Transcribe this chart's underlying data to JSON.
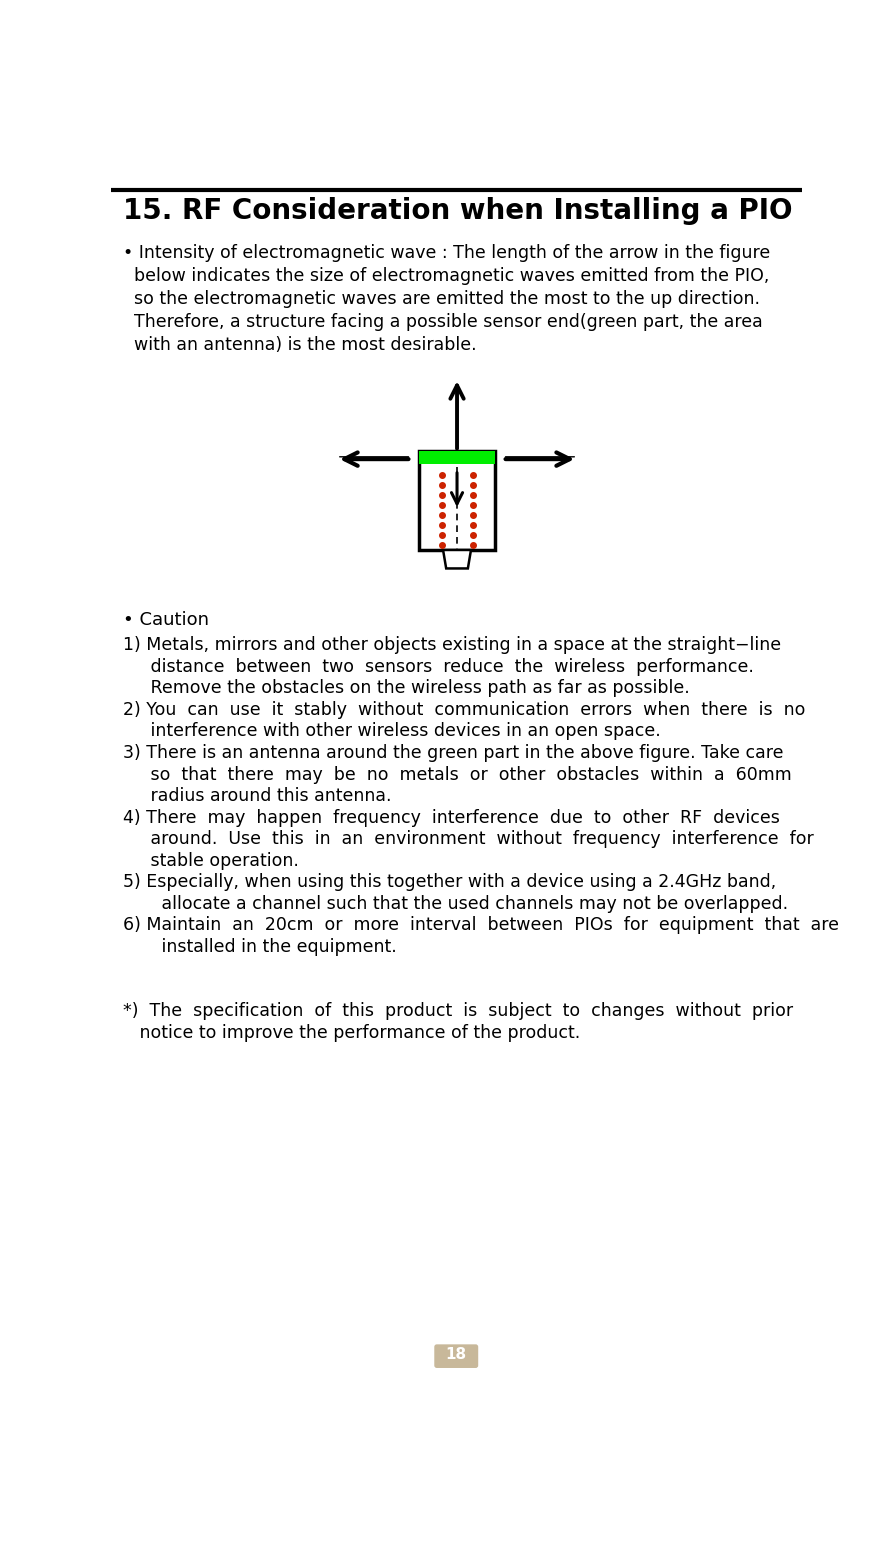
{
  "title": "15. RF Consideration when Installing a PIO",
  "bg_color": "#ffffff",
  "text_color": "#000000",
  "page_number": "18",
  "top_border_color": "#000000",
  "green_color": "#00ee00",
  "red_dot_color": "#cc2200",
  "arrow_color": "#000000",
  "page_box_color": "#c8b89a",
  "bullet1_lines": [
    "• Intensity of electromagnetic wave : The length of the arrow in the figure",
    "  below indicates the size of electromagnetic waves emitted from the PIO,",
    "  so the electromagnetic waves are emitted the most to the up direction.",
    "  Therefore, a structure facing a possible sensor end(green part, the area",
    "  with an antenna) is the most desirable."
  ],
  "caution_header": "• Caution",
  "caution_lines": [
    "1) Metals, mirrors and other objects existing in a space at the straight−line",
    "     distance  between  two  sensors  reduce  the  wireless  performance.",
    "     Remove the obstacles on the wireless path as far as possible.",
    "2) You  can  use  it  stably  without  communication  errors  when  there  is  no",
    "     interference with other wireless devices in an open space.",
    "3) There is an antenna around the green part in the above figure. Take care",
    "     so  that  there  may  be  no  metals  or  other  obstacles  within  a  60mm",
    "     radius around this antenna.",
    "4) There  may  happen  frequency  interference  due  to  other  RF  devices",
    "     around.  Use  this  in  an  environment  without  frequency  interference  for",
    "     stable operation.",
    "5) Especially, when using this together with a device using a 2.4GHz band,",
    "       allocate a channel such that the used channels may not be overlapped.",
    "6) Maintain  an  20cm  or  more  interval  between  PIOs  for  equipment  that  are",
    "       installed in the equipment."
  ],
  "footnote_lines": [
    "*)  The  specification  of  this  product  is  subject  to  changes  without  prior",
    "   notice to improve the performance of the product."
  ]
}
